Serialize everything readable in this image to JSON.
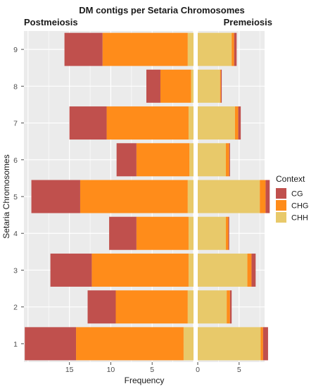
{
  "chart_data": {
    "type": "bar",
    "orientation": "horizontal",
    "stacked": true,
    "title": "DM contigs per Setaria Chromosomes",
    "left_panel_label": "Postmeiosis",
    "right_panel_label": "Premeiosis",
    "xlabel": "Frequency",
    "ylabel": "Setaria Chromosomes",
    "categories": [
      "1",
      "2",
      "3",
      "4",
      "5",
      "6",
      "7",
      "8",
      "9"
    ],
    "x_ticks": [
      "15",
      "10",
      "5",
      "0",
      "5"
    ],
    "legend_title": "Context",
    "legend_position": "right",
    "grid": true,
    "xlim_left": [
      0,
      20.5
    ],
    "xlim_right": [
      0,
      8.5
    ],
    "series": [
      {
        "name": "CG",
        "color": "#c0504d",
        "postmeiosis": [
          6.2,
          3.4,
          5.0,
          3.3,
          5.9,
          2.4,
          4.5,
          1.7,
          4.6
        ],
        "premeiosis": [
          0.6,
          0.2,
          0.5,
          0.1,
          0.5,
          0.1,
          0.3,
          0.1,
          0.3
        ]
      },
      {
        "name": "CHG",
        "color": "#ff8c1a",
        "postmeiosis": [
          13.0,
          8.7,
          11.7,
          6.3,
          13.0,
          6.4,
          9.9,
          3.7,
          10.3
        ],
        "premeiosis": [
          0.3,
          0.4,
          0.5,
          0.3,
          0.7,
          0.4,
          0.4,
          0.1,
          0.3
        ]
      },
      {
        "name": "CHH",
        "color": "#e8c96a",
        "postmeiosis": [
          1.2,
          0.7,
          0.6,
          0.6,
          0.7,
          0.5,
          0.6,
          0.3,
          0.7
        ],
        "premeiosis": [
          7.6,
          3.5,
          6.0,
          3.4,
          7.5,
          3.4,
          4.5,
          2.7,
          4.1
        ]
      }
    ]
  }
}
